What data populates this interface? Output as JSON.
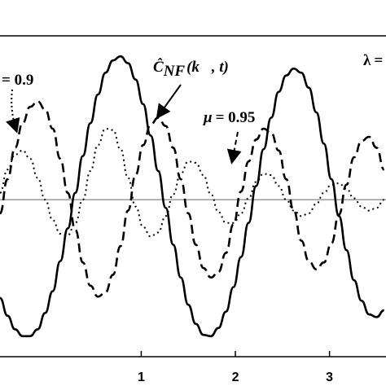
{
  "chart_data": {
    "type": "line",
    "title": "",
    "xlabel": "",
    "ylabel": "",
    "xlim": [
      -0.5,
      3.6
    ],
    "ylim": [
      -1.15,
      1.2
    ],
    "x_ticks": [
      1,
      2,
      3
    ],
    "x_tick_labels": [
      "1",
      "2",
      "3"
    ],
    "reference_line_y": 0,
    "grid": false,
    "legend": "none",
    "series": [
      {
        "name": "",
        "style": "solid",
        "color": "#000000",
        "x": [
          -0.5,
          -0.42,
          -0.34,
          -0.26,
          -0.18,
          -0.1,
          -0.02,
          0.06,
          0.14,
          0.22,
          0.3,
          0.38,
          0.46,
          0.54,
          0.62,
          0.7,
          0.78,
          0.86,
          0.94,
          1.02,
          1.1,
          1.18,
          1.26,
          1.34,
          1.42,
          1.5,
          1.58,
          1.66,
          1.74,
          1.82,
          1.9,
          1.98,
          2.06,
          2.14,
          2.22,
          2.3,
          2.38,
          2.46,
          2.54,
          2.62,
          2.7,
          2.78,
          2.86,
          2.94,
          3.02,
          3.1,
          3.18,
          3.26,
          3.34,
          3.42,
          3.5,
          3.58
        ],
        "y": [
          -0.72,
          -0.85,
          -0.95,
          -1.0,
          -1.0,
          -0.95,
          -0.83,
          -0.67,
          -0.45,
          -0.21,
          0.05,
          0.32,
          0.56,
          0.77,
          0.93,
          1.02,
          1.05,
          1.0,
          0.88,
          0.7,
          0.47,
          0.21,
          -0.06,
          -0.33,
          -0.57,
          -0.77,
          -0.91,
          -0.99,
          -1.0,
          -0.94,
          -0.82,
          -0.64,
          -0.42,
          -0.17,
          0.1,
          0.37,
          0.6,
          0.79,
          0.91,
          0.96,
          0.93,
          0.82,
          0.64,
          0.41,
          0.15,
          -0.12,
          -0.37,
          -0.59,
          -0.74,
          -0.84,
          -0.86,
          -0.81
        ]
      },
      {
        "name": "",
        "style": "dashed",
        "color": "#000000",
        "x": [
          -0.5,
          -0.42,
          -0.34,
          -0.26,
          -0.18,
          -0.1,
          -0.02,
          0.06,
          0.14,
          0.22,
          0.3,
          0.38,
          0.46,
          0.54,
          0.62,
          0.7,
          0.78,
          0.86,
          0.94,
          1.02,
          1.1,
          1.18,
          1.26,
          1.34,
          1.42,
          1.5,
          1.58,
          1.66,
          1.74,
          1.82,
          1.9,
          1.98,
          2.06,
          2.14,
          2.22,
          2.3,
          2.38,
          2.46,
          2.54,
          2.62,
          2.7,
          2.78,
          2.86,
          2.94,
          3.02,
          3.1,
          3.18,
          3.26,
          3.34,
          3.42,
          3.5,
          3.58
        ],
        "y": [
          -0.1,
          0.15,
          0.38,
          0.56,
          0.68,
          0.72,
          0.66,
          0.52,
          0.3,
          0.05,
          -0.22,
          -0.46,
          -0.63,
          -0.71,
          -0.68,
          -0.55,
          -0.34,
          -0.08,
          0.18,
          0.4,
          0.55,
          0.6,
          0.54,
          0.38,
          0.15,
          -0.1,
          -0.33,
          -0.5,
          -0.57,
          -0.53,
          -0.39,
          -0.18,
          0.06,
          0.28,
          0.44,
          0.52,
          0.49,
          0.36,
          0.15,
          -0.08,
          -0.3,
          -0.45,
          -0.51,
          -0.46,
          -0.32,
          -0.11,
          0.11,
          0.31,
          0.43,
          0.46,
          0.38,
          0.22
        ]
      },
      {
        "name": "",
        "style": "dotted",
        "color": "#000000",
        "x": [
          -0.5,
          -0.42,
          -0.34,
          -0.26,
          -0.18,
          -0.1,
          -0.02,
          0.06,
          0.14,
          0.22,
          0.3,
          0.38,
          0.46,
          0.54,
          0.62,
          0.7,
          0.78,
          0.86,
          0.94,
          1.02,
          1.1,
          1.18,
          1.26,
          1.34,
          1.42,
          1.5,
          1.58,
          1.66,
          1.74,
          1.82,
          1.9,
          1.98,
          2.06,
          2.14,
          2.22,
          2.3,
          2.38,
          2.46,
          2.54,
          2.62,
          2.7,
          2.78,
          2.86,
          2.94,
          3.02,
          3.1,
          3.18,
          3.26,
          3.34,
          3.42,
          3.5,
          3.58
        ],
        "y": [
          0.05,
          0.22,
          0.33,
          0.36,
          0.3,
          0.16,
          0.0,
          -0.15,
          -0.25,
          -0.26,
          -0.17,
          0.0,
          0.21,
          0.4,
          0.52,
          0.51,
          0.37,
          0.16,
          -0.05,
          -0.2,
          -0.27,
          -0.24,
          -0.12,
          0.04,
          0.19,
          0.28,
          0.27,
          0.18,
          0.04,
          -0.09,
          -0.17,
          -0.17,
          -0.1,
          0.01,
          0.13,
          0.19,
          0.18,
          0.1,
          0.0,
          -0.08,
          -0.12,
          -0.1,
          -0.03,
          0.05,
          0.11,
          0.12,
          0.08,
          0.01,
          -0.05,
          -0.08,
          -0.06,
          0.0
        ]
      }
    ],
    "annotations": [
      {
        "symbol": "",
        "value": "= 0.9",
        "arrow": true
      },
      {
        "symbol": "Ĉ",
        "subscript": "NF",
        "value": "(k⃗, t)",
        "arrow": true
      },
      {
        "symbol": "μ",
        "value": "= 0.95",
        "arrow": true
      },
      {
        "symbol": "λ",
        "value": "=",
        "arrow": false
      }
    ]
  }
}
